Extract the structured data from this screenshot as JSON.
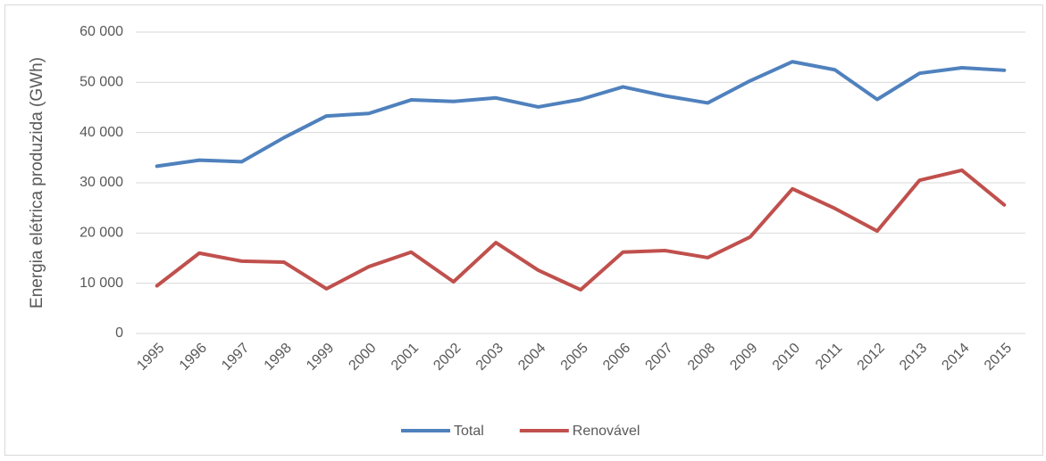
{
  "chart_data": {
    "type": "line",
    "y_label": "Energia elétrica produzida (GWh)",
    "categories": [
      "1995",
      "1996",
      "1997",
      "1998",
      "1999",
      "2000",
      "2001",
      "2002",
      "2003",
      "2004",
      "2005",
      "2006",
      "2007",
      "2008",
      "2009",
      "2010",
      "2011",
      "2012",
      "2013",
      "2014",
      "2015"
    ],
    "series": [
      {
        "name": "Total",
        "color": "#4f81bd",
        "values": [
          33300,
          34500,
          34200,
          39000,
          43300,
          43800,
          46500,
          46200,
          46900,
          45100,
          46600,
          49100,
          47300,
          45900,
          50300,
          54100,
          52500,
          46600,
          51800,
          52900,
          52400
        ]
      },
      {
        "name": "Renovável",
        "color": "#c0504d",
        "values": [
          9500,
          16000,
          14400,
          14200,
          8900,
          13300,
          16200,
          10300,
          18100,
          12600,
          8700,
          16200,
          16500,
          15100,
          19200,
          28800,
          24900,
          20400,
          30500,
          32500,
          25600
        ]
      }
    ],
    "ylim": [
      0,
      60000
    ],
    "yticks": [
      0,
      {
        "value": 10000,
        "label": "10 000"
      },
      {
        "value": 20000,
        "label": "20 000"
      },
      {
        "value": 30000,
        "label": "30 000"
      },
      {
        "value": 40000,
        "label": "40 000"
      },
      {
        "value": 50000,
        "label": "50 000"
      },
      {
        "value": 60000,
        "label": "60 000"
      }
    ],
    "grid": true,
    "legend": "bottom"
  }
}
